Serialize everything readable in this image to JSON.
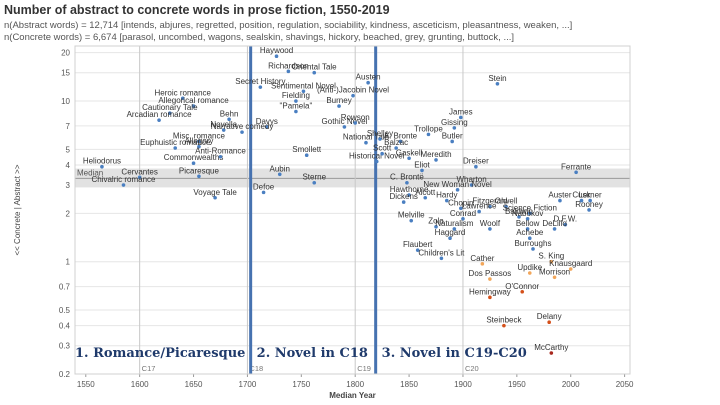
{
  "header": {
    "title": "Number of abstract to concrete words in prose fiction, 1550-2019",
    "abstract_line": "n(Abstract words) = 12,714 [intends, abjures, regretted, position, regulation, sociability, kindness, asceticism, pleasantness, weaken, ...]",
    "concrete_line": "n(Concrete words) = 6,674 [parasol, uncombed, wagons, sealskin, shavings, hickory, beached, grey, grunting, buttock, ...]"
  },
  "chart_data": {
    "type": "scatter",
    "xlabel": "Median Year",
    "ylabel": "<< Concrete | Abstract >>",
    "xlim": [
      1540,
      2055
    ],
    "ylim": [
      0.2,
      22
    ],
    "y_scale": "log",
    "x_ticks": [
      "1550",
      "1600",
      "1650",
      "1700",
      "1750",
      "1800",
      "1850",
      "1900",
      "1950",
      "2000",
      "2050"
    ],
    "y_ticks": [
      "0.2",
      "0.3",
      "0.4",
      "0.5",
      "0.7",
      "1",
      "2",
      "3",
      "4",
      "5",
      "7",
      "10",
      "15",
      "20"
    ],
    "median": {
      "label": "Median",
      "value": 3.3,
      "band": [
        2.9,
        3.8
      ]
    },
    "centuries": [
      {
        "label": "C17",
        "x": 1600
      },
      {
        "label": "C18",
        "x": 1700
      },
      {
        "label": "C19",
        "x": 1800
      },
      {
        "label": "C20",
        "x": 1900
      }
    ],
    "eras": [
      {
        "label": "1. Romance/Picaresque",
        "boundary": 1703
      },
      {
        "label": "2. Novel in C18",
        "boundary": 1819
      },
      {
        "label": "3. Novel in C19-C20"
      }
    ],
    "colors": {
      "blue": "#4a7fc1",
      "light_orange": "#f2a65a",
      "dark_orange": "#d4501a",
      "dark_red": "#a8281e",
      "era_line": "#4672b0"
    },
    "points": [
      {
        "label": "Heliodorus",
        "x": 1565,
        "y": 3.9,
        "c": "blue"
      },
      {
        "label": "Cervantes",
        "x": 1600,
        "y": 3.35,
        "c": "blue"
      },
      {
        "label": "Chivalric romance",
        "x": 1585,
        "y": 3.0,
        "c": "blue"
      },
      {
        "label": "Heroic romance",
        "x": 1640,
        "y": 10.4,
        "c": "blue"
      },
      {
        "label": "Allegorical romance",
        "x": 1650,
        "y": 9.3,
        "c": "blue"
      },
      {
        "label": "Cautionary Tale",
        "x": 1628,
        "y": 8.4,
        "c": "blue"
      },
      {
        "label": "Arcadian romance",
        "x": 1618,
        "y": 7.6,
        "c": "blue"
      },
      {
        "label": "Misc. romance",
        "x": 1655,
        "y": 5.6,
        "c": "blue"
      },
      {
        "label": "Euphuistic romance",
        "x": 1633,
        "y": 5.1,
        "c": "blue"
      },
      {
        "label": "Commonwealths",
        "x": 1650,
        "y": 4.1,
        "c": "blue"
      },
      {
        "label": "Novella",
        "x": 1678,
        "y": 6.6,
        "c": "blue"
      },
      {
        "label": "Behn",
        "x": 1683,
        "y": 7.7,
        "c": "blue"
      },
      {
        "label": "Allegory",
        "x": 1655,
        "y": 5.2,
        "c": "blue"
      },
      {
        "label": "Anti-Romance",
        "x": 1675,
        "y": 4.5,
        "c": "blue"
      },
      {
        "label": "Picaresque",
        "x": 1655,
        "y": 3.4,
        "c": "blue"
      },
      {
        "label": "Voyage Tale",
        "x": 1670,
        "y": 2.5,
        "c": "blue"
      },
      {
        "label": "Haywood",
        "x": 1727,
        "y": 19.0,
        "c": "blue"
      },
      {
        "label": "Richardson",
        "x": 1738,
        "y": 15.3,
        "c": "blue"
      },
      {
        "label": "Oriental Tale",
        "x": 1762,
        "y": 15.0,
        "c": "blue"
      },
      {
        "label": "Secret History",
        "x": 1712,
        "y": 12.2,
        "c": "blue"
      },
      {
        "label": "Sentimental Novel",
        "x": 1752,
        "y": 11.5,
        "c": "blue"
      },
      {
        "label": "Fielding",
        "x": 1745,
        "y": 10.0,
        "c": "blue"
      },
      {
        "label": "\"Pamela\"",
        "x": 1745,
        "y": 8.6,
        "c": "blue"
      },
      {
        "label": "Davys",
        "x": 1718,
        "y": 6.9,
        "c": "blue"
      },
      {
        "label": "Narrative comedy",
        "x": 1695,
        "y": 6.4,
        "c": "blue"
      },
      {
        "label": "Gothic Novel",
        "x": 1790,
        "y": 6.9,
        "c": "blue"
      },
      {
        "label": "Smollett",
        "x": 1755,
        "y": 4.6,
        "c": "blue"
      },
      {
        "label": "Aubin",
        "x": 1730,
        "y": 3.5,
        "c": "blue"
      },
      {
        "label": "Sterne",
        "x": 1762,
        "y": 3.1,
        "c": "blue"
      },
      {
        "label": "Defoe",
        "x": 1715,
        "y": 2.7,
        "c": "blue"
      },
      {
        "label": "Austen",
        "x": 1812,
        "y": 13.0,
        "c": "blue"
      },
      {
        "label": "(Anti-)Jacobin Novel",
        "x": 1798,
        "y": 10.8,
        "c": "blue"
      },
      {
        "label": "Burney",
        "x": 1785,
        "y": 9.3,
        "c": "blue"
      },
      {
        "label": "Rowson",
        "x": 1800,
        "y": 7.3,
        "c": "blue"
      },
      {
        "label": "National Tale",
        "x": 1810,
        "y": 5.5,
        "c": "blue"
      },
      {
        "label": "Historical Novel",
        "x": 1820,
        "y": 4.2,
        "c": "blue"
      },
      {
        "label": "Shelley",
        "x": 1823,
        "y": 5.8,
        "c": "blue"
      },
      {
        "label": "A. Bronte",
        "x": 1842,
        "y": 5.6,
        "c": "blue"
      },
      {
        "label": "Trollope",
        "x": 1868,
        "y": 6.2,
        "c": "blue"
      },
      {
        "label": "Gissing",
        "x": 1892,
        "y": 6.8,
        "c": "blue"
      },
      {
        "label": "James",
        "x": 1898,
        "y": 7.9,
        "c": "blue"
      },
      {
        "label": "Butler",
        "x": 1890,
        "y": 5.6,
        "c": "blue"
      },
      {
        "label": "Stein",
        "x": 1932,
        "y": 12.8,
        "c": "blue"
      },
      {
        "label": "Balzac",
        "x": 1838,
        "y": 5.1,
        "c": "blue"
      },
      {
        "label": "Scott",
        "x": 1825,
        "y": 4.7,
        "c": "blue"
      },
      {
        "label": "Gaskell",
        "x": 1850,
        "y": 4.4,
        "c": "blue"
      },
      {
        "label": "Meredith",
        "x": 1875,
        "y": 4.3,
        "c": "blue"
      },
      {
        "label": "Eliot",
        "x": 1862,
        "y": 3.7,
        "c": "blue"
      },
      {
        "label": "Dreiser",
        "x": 1912,
        "y": 3.9,
        "c": "blue"
      },
      {
        "label": "Ferrante",
        "x": 2005,
        "y": 3.6,
        "c": "blue"
      },
      {
        "label": "C. Brontë",
        "x": 1848,
        "y": 3.1,
        "c": "blue"
      },
      {
        "label": "Wharton",
        "x": 1908,
        "y": 3.0,
        "c": "blue"
      },
      {
        "label": "New Woman Novel",
        "x": 1895,
        "y": 2.8,
        "c": "blue"
      },
      {
        "label": "Hawthorne",
        "x": 1850,
        "y": 2.6,
        "c": "blue"
      },
      {
        "label": "Alcott",
        "x": 1865,
        "y": 2.5,
        "c": "blue"
      },
      {
        "label": "Hardy",
        "x": 1885,
        "y": 2.4,
        "c": "blue"
      },
      {
        "label": "Dickens",
        "x": 1845,
        "y": 2.35,
        "c": "blue"
      },
      {
        "label": "Chopin",
        "x": 1898,
        "y": 2.15,
        "c": "blue"
      },
      {
        "label": "Fitzgerald",
        "x": 1925,
        "y": 2.2,
        "c": "blue"
      },
      {
        "label": "Orwell",
        "x": 1940,
        "y": 2.2,
        "c": "blue"
      },
      {
        "label": "Auster",
        "x": 1990,
        "y": 2.4,
        "c": "blue"
      },
      {
        "label": "Cusk",
        "x": 2010,
        "y": 2.4,
        "c": "blue"
      },
      {
        "label": "Lerner",
        "x": 2018,
        "y": 2.4,
        "c": "blue"
      },
      {
        "label": "Rooney",
        "x": 2017,
        "y": 2.1,
        "c": "blue"
      },
      {
        "label": "Lawrence",
        "x": 1915,
        "y": 2.05,
        "c": "blue"
      },
      {
        "label": "Science Fiction",
        "x": 1962,
        "y": 2.0,
        "c": "blue"
      },
      {
        "label": "Melville",
        "x": 1852,
        "y": 1.8,
        "c": "blue"
      },
      {
        "label": "Conrad",
        "x": 1900,
        "y": 1.85,
        "c": "blue"
      },
      {
        "label": "Baldwin",
        "x": 1952,
        "y": 1.9,
        "c": "blue"
      },
      {
        "label": "Nabokov",
        "x": 1960,
        "y": 1.85,
        "c": "blue"
      },
      {
        "label": "D.F.W.",
        "x": 1995,
        "y": 1.7,
        "c": "blue"
      },
      {
        "label": "Zola",
        "x": 1875,
        "y": 1.65,
        "c": "blue"
      },
      {
        "label": "Naturalism",
        "x": 1892,
        "y": 1.6,
        "c": "blue"
      },
      {
        "label": "Woolf",
        "x": 1925,
        "y": 1.6,
        "c": "blue"
      },
      {
        "label": "Bellow",
        "x": 1960,
        "y": 1.6,
        "c": "blue"
      },
      {
        "label": "DeLillo",
        "x": 1985,
        "y": 1.6,
        "c": "blue"
      },
      {
        "label": "Haggard",
        "x": 1888,
        "y": 1.4,
        "c": "blue"
      },
      {
        "label": "Achebe",
        "x": 1962,
        "y": 1.4,
        "c": "blue"
      },
      {
        "label": "Flaubert",
        "x": 1858,
        "y": 1.18,
        "c": "blue"
      },
      {
        "label": "Children's Lit",
        "x": 1880,
        "y": 1.05,
        "c": "blue"
      },
      {
        "label": "Burroughs",
        "x": 1965,
        "y": 1.2,
        "c": "blue"
      },
      {
        "label": "Cather",
        "x": 1918,
        "y": 0.97,
        "c": "light_orange"
      },
      {
        "label": "S. King",
        "x": 1982,
        "y": 1.0,
        "c": "light_orange"
      },
      {
        "label": "Knausgaard",
        "x": 2000,
        "y": 0.9,
        "c": "light_orange"
      },
      {
        "label": "Updike",
        "x": 1962,
        "y": 0.85,
        "c": "light_orange"
      },
      {
        "label": "Morrison",
        "x": 1985,
        "y": 0.8,
        "c": "light_orange"
      },
      {
        "label": "Dos Passos",
        "x": 1925,
        "y": 0.78,
        "c": "light_orange"
      },
      {
        "label": "O'Connor",
        "x": 1955,
        "y": 0.65,
        "c": "dark_orange"
      },
      {
        "label": "Hemingway",
        "x": 1925,
        "y": 0.6,
        "c": "dark_orange"
      },
      {
        "label": "Steinbeck",
        "x": 1938,
        "y": 0.4,
        "c": "dark_orange"
      },
      {
        "label": "Delany",
        "x": 1980,
        "y": 0.42,
        "c": "dark_orange"
      },
      {
        "label": "McCarthy",
        "x": 1982,
        "y": 0.27,
        "c": "dark_red"
      }
    ]
  }
}
